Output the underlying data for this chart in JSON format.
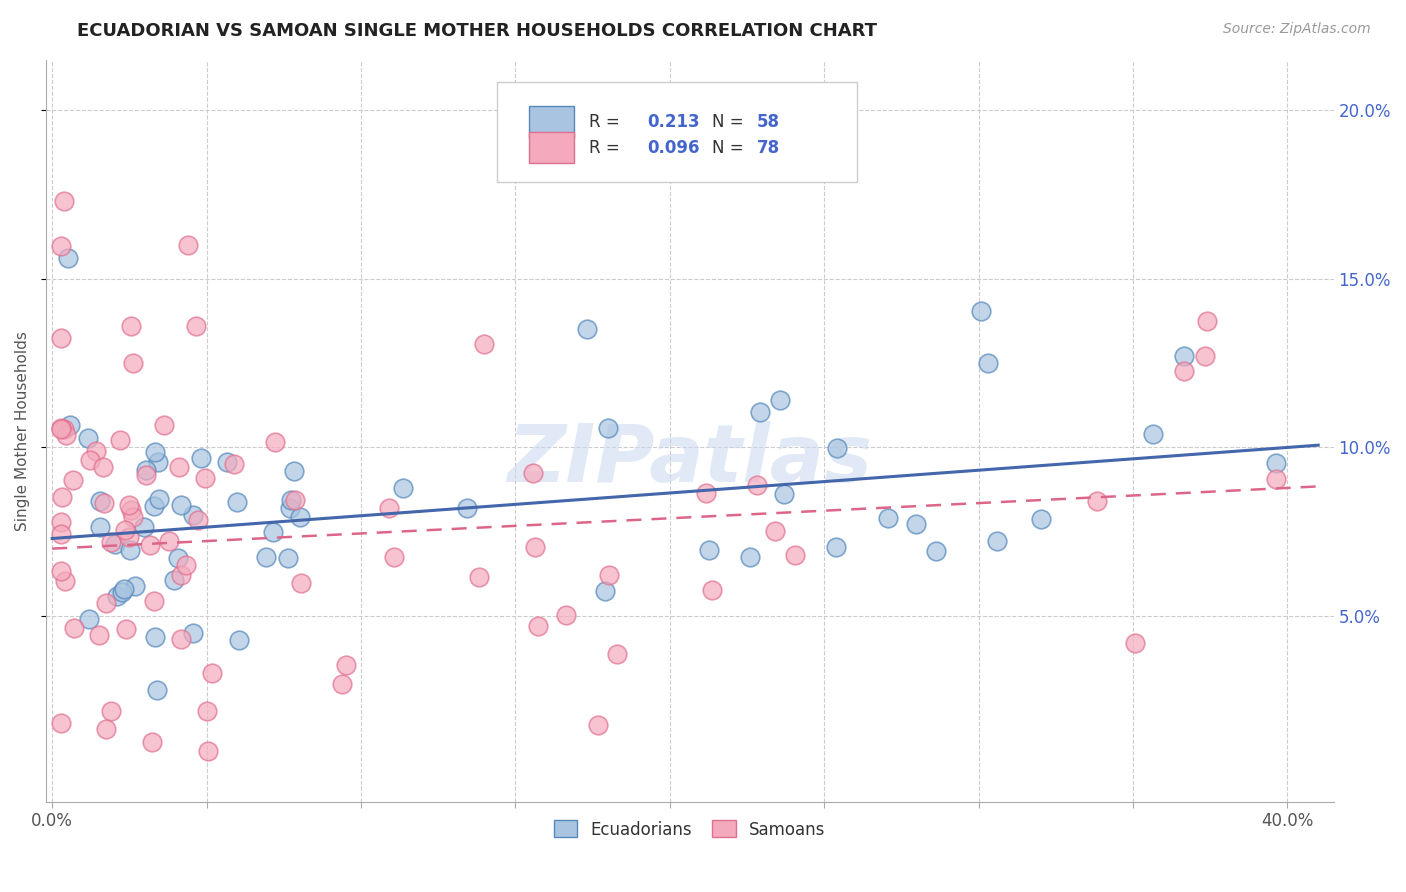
{
  "title": "ECUADORIAN VS SAMOAN SINGLE MOTHER HOUSEHOLDS CORRELATION CHART",
  "source": "Source: ZipAtlas.com",
  "ylabel": "Single Mother Households",
  "ylim": [
    -0.005,
    0.215
  ],
  "xlim": [
    -0.002,
    0.415
  ],
  "r_ecuadorian": 0.213,
  "n_ecuadorian": 58,
  "r_samoan": 0.096,
  "n_samoan": 78,
  "color_blue_face": "#A8C4E0",
  "color_blue_edge": "#5588BB",
  "color_pink_face": "#F4AABC",
  "color_pink_edge": "#E07090",
  "color_trend_blue": "#4466AA",
  "color_trend_pink": "#DD6688",
  "color_text_blue": "#4466CC",
  "watermark": "ZIPatlas",
  "x_ticks": [
    0.0,
    0.05,
    0.1,
    0.15,
    0.2,
    0.25,
    0.3,
    0.35,
    0.4
  ],
  "y_ticks": [
    0.05,
    0.1,
    0.15,
    0.2
  ],
  "y_tick_labels": [
    "5.0%",
    "10.0%",
    "15.0%",
    "20.0%"
  ],
  "trend_blue_start_y": 0.073,
  "trend_blue_end_y": 0.1,
  "trend_pink_start_y": 0.07,
  "trend_pink_end_y": 0.088
}
